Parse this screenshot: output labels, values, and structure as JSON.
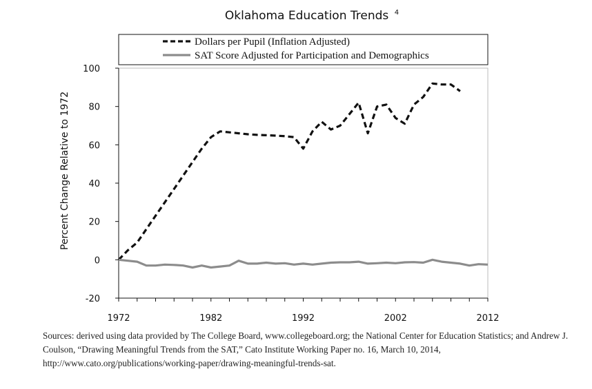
{
  "chart_data": {
    "type": "line",
    "title": "Oklahoma Education Trends",
    "title_footnote": "4",
    "ylabel": "Percent Change Relative to 1972",
    "xlabel": "",
    "xlim": [
      1972,
      2012
    ],
    "ylim": [
      -20,
      100
    ],
    "x_ticks": [
      1972,
      1982,
      1992,
      2002,
      2012
    ],
    "y_ticks": [
      -20,
      0,
      20,
      40,
      60,
      80,
      100
    ],
    "grid": false,
    "legend_placement": "top",
    "series": [
      {
        "name": "Dollars per Pupil (Inflation Adjusted)",
        "color": "#111111",
        "style": "dashed",
        "x": [
          1972,
          1973,
          1974,
          1975,
          1976,
          1977,
          1978,
          1979,
          1980,
          1981,
          1982,
          1983,
          1984,
          1985,
          1986,
          1987,
          1988,
          1989,
          1990,
          1991,
          1992,
          1993,
          1994,
          1995,
          1996,
          1997,
          1998,
          1999,
          2000,
          2001,
          2002,
          2003,
          2004,
          2005,
          2006,
          2007,
          2008,
          2009
        ],
        "y": [
          0,
          5,
          9,
          16,
          23,
          30,
          37,
          44,
          51,
          58,
          64,
          67,
          66.5,
          66,
          65.5,
          65.2,
          65,
          64.8,
          64.5,
          64,
          58,
          67,
          72,
          68,
          70,
          76,
          82,
          66,
          80,
          81,
          74,
          71,
          81,
          85,
          92,
          91.5,
          91.5,
          88
        ]
      },
      {
        "name": "SAT Score Adjusted for Participation and Demographics",
        "color": "#8c8c8c",
        "style": "solid",
        "x": [
          1972,
          1973,
          1974,
          1975,
          1976,
          1977,
          1978,
          1979,
          1980,
          1981,
          1982,
          1983,
          1984,
          1985,
          1986,
          1987,
          1988,
          1989,
          1990,
          1991,
          1992,
          1993,
          1994,
          1995,
          1996,
          1997,
          1998,
          1999,
          2000,
          2001,
          2002,
          2003,
          2004,
          2005,
          2006,
          2007,
          2008,
          2009,
          2010,
          2011,
          2012
        ],
        "y": [
          0,
          -0.5,
          -1,
          -3,
          -3,
          -2.5,
          -2.7,
          -3,
          -4,
          -3,
          -4,
          -3.5,
          -3,
          -0.5,
          -2,
          -2,
          -1.5,
          -2,
          -1.8,
          -2.5,
          -2,
          -2.5,
          -2,
          -1.5,
          -1.3,
          -1.3,
          -1,
          -2,
          -1.8,
          -1.5,
          -1.8,
          -1.3,
          -1.2,
          -1.5,
          0,
          -1,
          -1.5,
          -2,
          -3,
          -2.3,
          -2.5
        ]
      }
    ]
  },
  "source_note": "Sources: derived using data provided by The College Board, www.collegeboard.org; the National Center for Education Statistics; and Andrew J. Coulson, “Drawing Meaningful Trends from the SAT,” Cato Institute Working Paper no. 16, March 10, 2014, http://www.cato.org/publications/working-paper/drawing-meaningful-trends-sat."
}
